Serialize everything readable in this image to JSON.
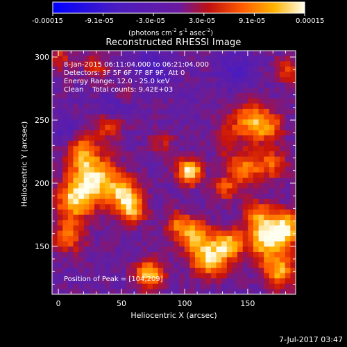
{
  "colorbar": {
    "tick_labels": [
      "-0.00015",
      "-9.1e-05",
      "-3.0e-05",
      "3.0e-05",
      "9.1e-05",
      "0.00015"
    ],
    "unit_line1": "(photons cm",
    "unit_sup1": "-2",
    "unit_mid1": " s",
    "unit_sup2": "-1",
    "unit_mid2": " asec",
    "unit_sup3": "-2",
    "unit_end": ")"
  },
  "chart_data": {
    "type": "heatmap",
    "title": "Reconstructed RHESSI Image",
    "xlabel": "Heliocentric X (arcsec)",
    "ylabel": "Heliocentric Y (arcsec)",
    "xlim": [
      -5,
      188
    ],
    "ylim": [
      112,
      305
    ],
    "x_ticks": [
      "0",
      "50",
      "100",
      "150"
    ],
    "y_ticks": [
      "150",
      "200",
      "250",
      "300"
    ],
    "colorbar_range": [
      -0.00015,
      0.00015
    ],
    "info_lines": [
      "8-Jan-2015 06:11:04.000 to 06:21:04.000",
      "Detectors: 3F 5F 6F 7F 8F 9F, Att 0",
      "Energy Range: 12.0 - 25.0 keV",
      "Clean    Total counts: 9.42E+03"
    ],
    "peak_label": "Position of Peak = [104,209]",
    "blobs": [
      {
        "x": 104,
        "y": 209,
        "amp": 1.0,
        "r": 7
      },
      {
        "x": 28,
        "y": 203,
        "amp": 0.95,
        "r": 13
      },
      {
        "x": 12,
        "y": 185,
        "amp": 0.75,
        "r": 10
      },
      {
        "x": 52,
        "y": 192,
        "amp": 0.7,
        "r": 9
      },
      {
        "x": 58,
        "y": 178,
        "amp": 0.65,
        "r": 8
      },
      {
        "x": 18,
        "y": 225,
        "amp": 0.6,
        "r": 9
      },
      {
        "x": 40,
        "y": 245,
        "amp": 0.45,
        "r": 8
      },
      {
        "x": 8,
        "y": 158,
        "amp": 0.55,
        "r": 9
      },
      {
        "x": 72,
        "y": 128,
        "amp": 0.85,
        "r": 8
      },
      {
        "x": 120,
        "y": 140,
        "amp": 0.85,
        "r": 10
      },
      {
        "x": 108,
        "y": 158,
        "amp": 0.7,
        "r": 9
      },
      {
        "x": 135,
        "y": 152,
        "amp": 0.75,
        "r": 8
      },
      {
        "x": 165,
        "y": 155,
        "amp": 0.9,
        "r": 11
      },
      {
        "x": 180,
        "y": 165,
        "amp": 0.85,
        "r": 9
      },
      {
        "x": 158,
        "y": 175,
        "amp": 0.55,
        "r": 8
      },
      {
        "x": 175,
        "y": 130,
        "amp": 0.75,
        "r": 9
      },
      {
        "x": 95,
        "y": 168,
        "amp": 0.5,
        "r": 7
      },
      {
        "x": 150,
        "y": 250,
        "amp": 0.55,
        "r": 10
      },
      {
        "x": 165,
        "y": 245,
        "amp": 0.6,
        "r": 9
      },
      {
        "x": 148,
        "y": 212,
        "amp": 0.6,
        "r": 10
      },
      {
        "x": 170,
        "y": 215,
        "amp": 0.5,
        "r": 8
      },
      {
        "x": 132,
        "y": 196,
        "amp": 0.45,
        "r": 7
      },
      {
        "x": 182,
        "y": 290,
        "amp": 0.45,
        "r": 7
      },
      {
        "x": 132,
        "y": 235,
        "amp": 0.3,
        "r": 9
      },
      {
        "x": 0,
        "y": 300,
        "amp": 0.35,
        "r": 8
      },
      {
        "x": 30,
        "y": 292,
        "amp": 0.3,
        "r": 8
      },
      {
        "x": 50,
        "y": 270,
        "amp": 0.25,
        "r": 8
      },
      {
        "x": 82,
        "y": 232,
        "amp": 0.3,
        "r": 7
      },
      {
        "x": 75,
        "y": 292,
        "amp": -0.35,
        "r": 10
      },
      {
        "x": 45,
        "y": 262,
        "amp": -0.3,
        "r": 9
      },
      {
        "x": 140,
        "y": 290,
        "amp": -0.3,
        "r": 10
      },
      {
        "x": 5,
        "y": 240,
        "amp": -0.25,
        "r": 7
      }
    ]
  },
  "footer": {
    "date": "7-Jul-2017 03:47"
  }
}
